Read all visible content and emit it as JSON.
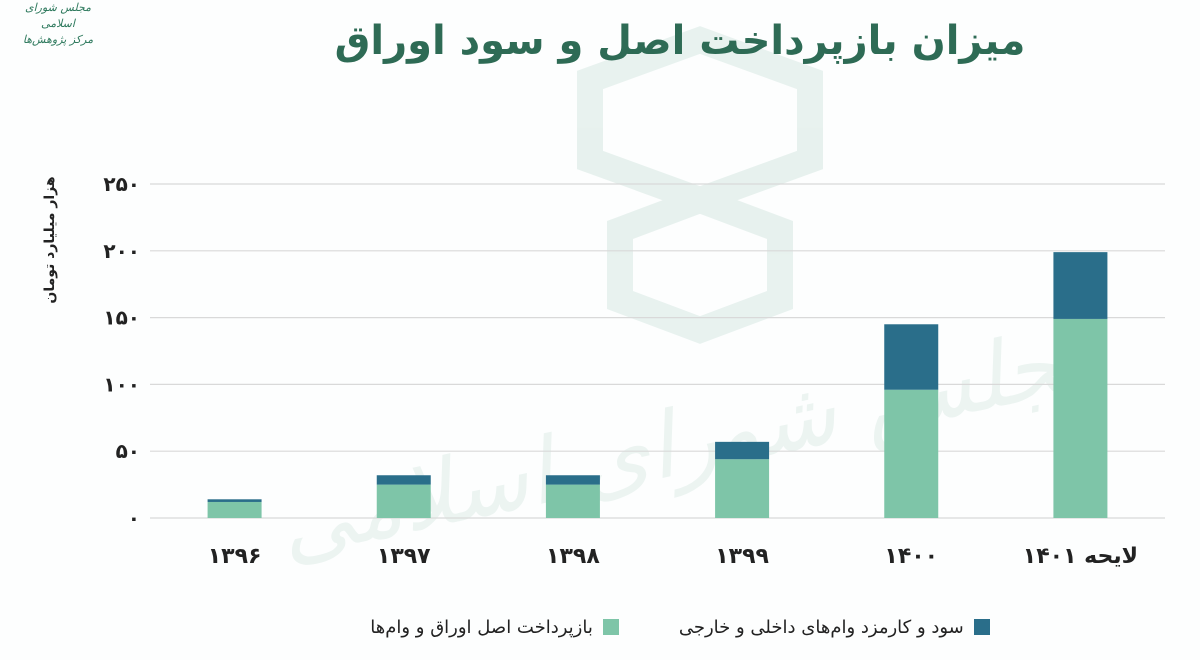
{
  "title": "میزان بازپرداخت اصل و سود اوراق",
  "logo_text": [
    "مجلس شورای اسلامی",
    "مرکز پژوهش‌ها"
  ],
  "watermark": "مجلس شورای اسلامی",
  "colors": {
    "principal": "#7ec5a8",
    "interest": "#2a6e8a",
    "title": "#2e6b55",
    "grid": "#d9d9d9"
  },
  "chart_data": {
    "type": "bar",
    "stacked": true,
    "title": "میزان بازپرداخت اصل و سود اوراق",
    "xlabel": "",
    "ylabel": "هزار میلیارد تومان",
    "ylim": [
      0,
      250
    ],
    "yticks": [
      0,
      50,
      100,
      150,
      200,
      250
    ],
    "ytick_labels": [
      "۰",
      "۵۰",
      "۱۰۰",
      "۱۵۰",
      "۲۰۰",
      "۲۵۰"
    ],
    "categories": [
      "۱۳۹۶",
      "۱۳۹۷",
      "۱۳۹۸",
      "۱۳۹۹",
      "۱۴۰۰",
      "لایحه ۱۴۰۱"
    ],
    "series": [
      {
        "name": "بازپرداخت اصل اوراق و وام‌ها",
        "values": [
          12,
          25,
          25,
          44,
          96,
          149
        ]
      },
      {
        "name": "سود و کارمزد وام‌های داخلی و خارجی",
        "values": [
          2,
          7,
          7,
          13,
          49,
          50
        ]
      }
    ],
    "grid": true,
    "legend_position": "bottom"
  }
}
